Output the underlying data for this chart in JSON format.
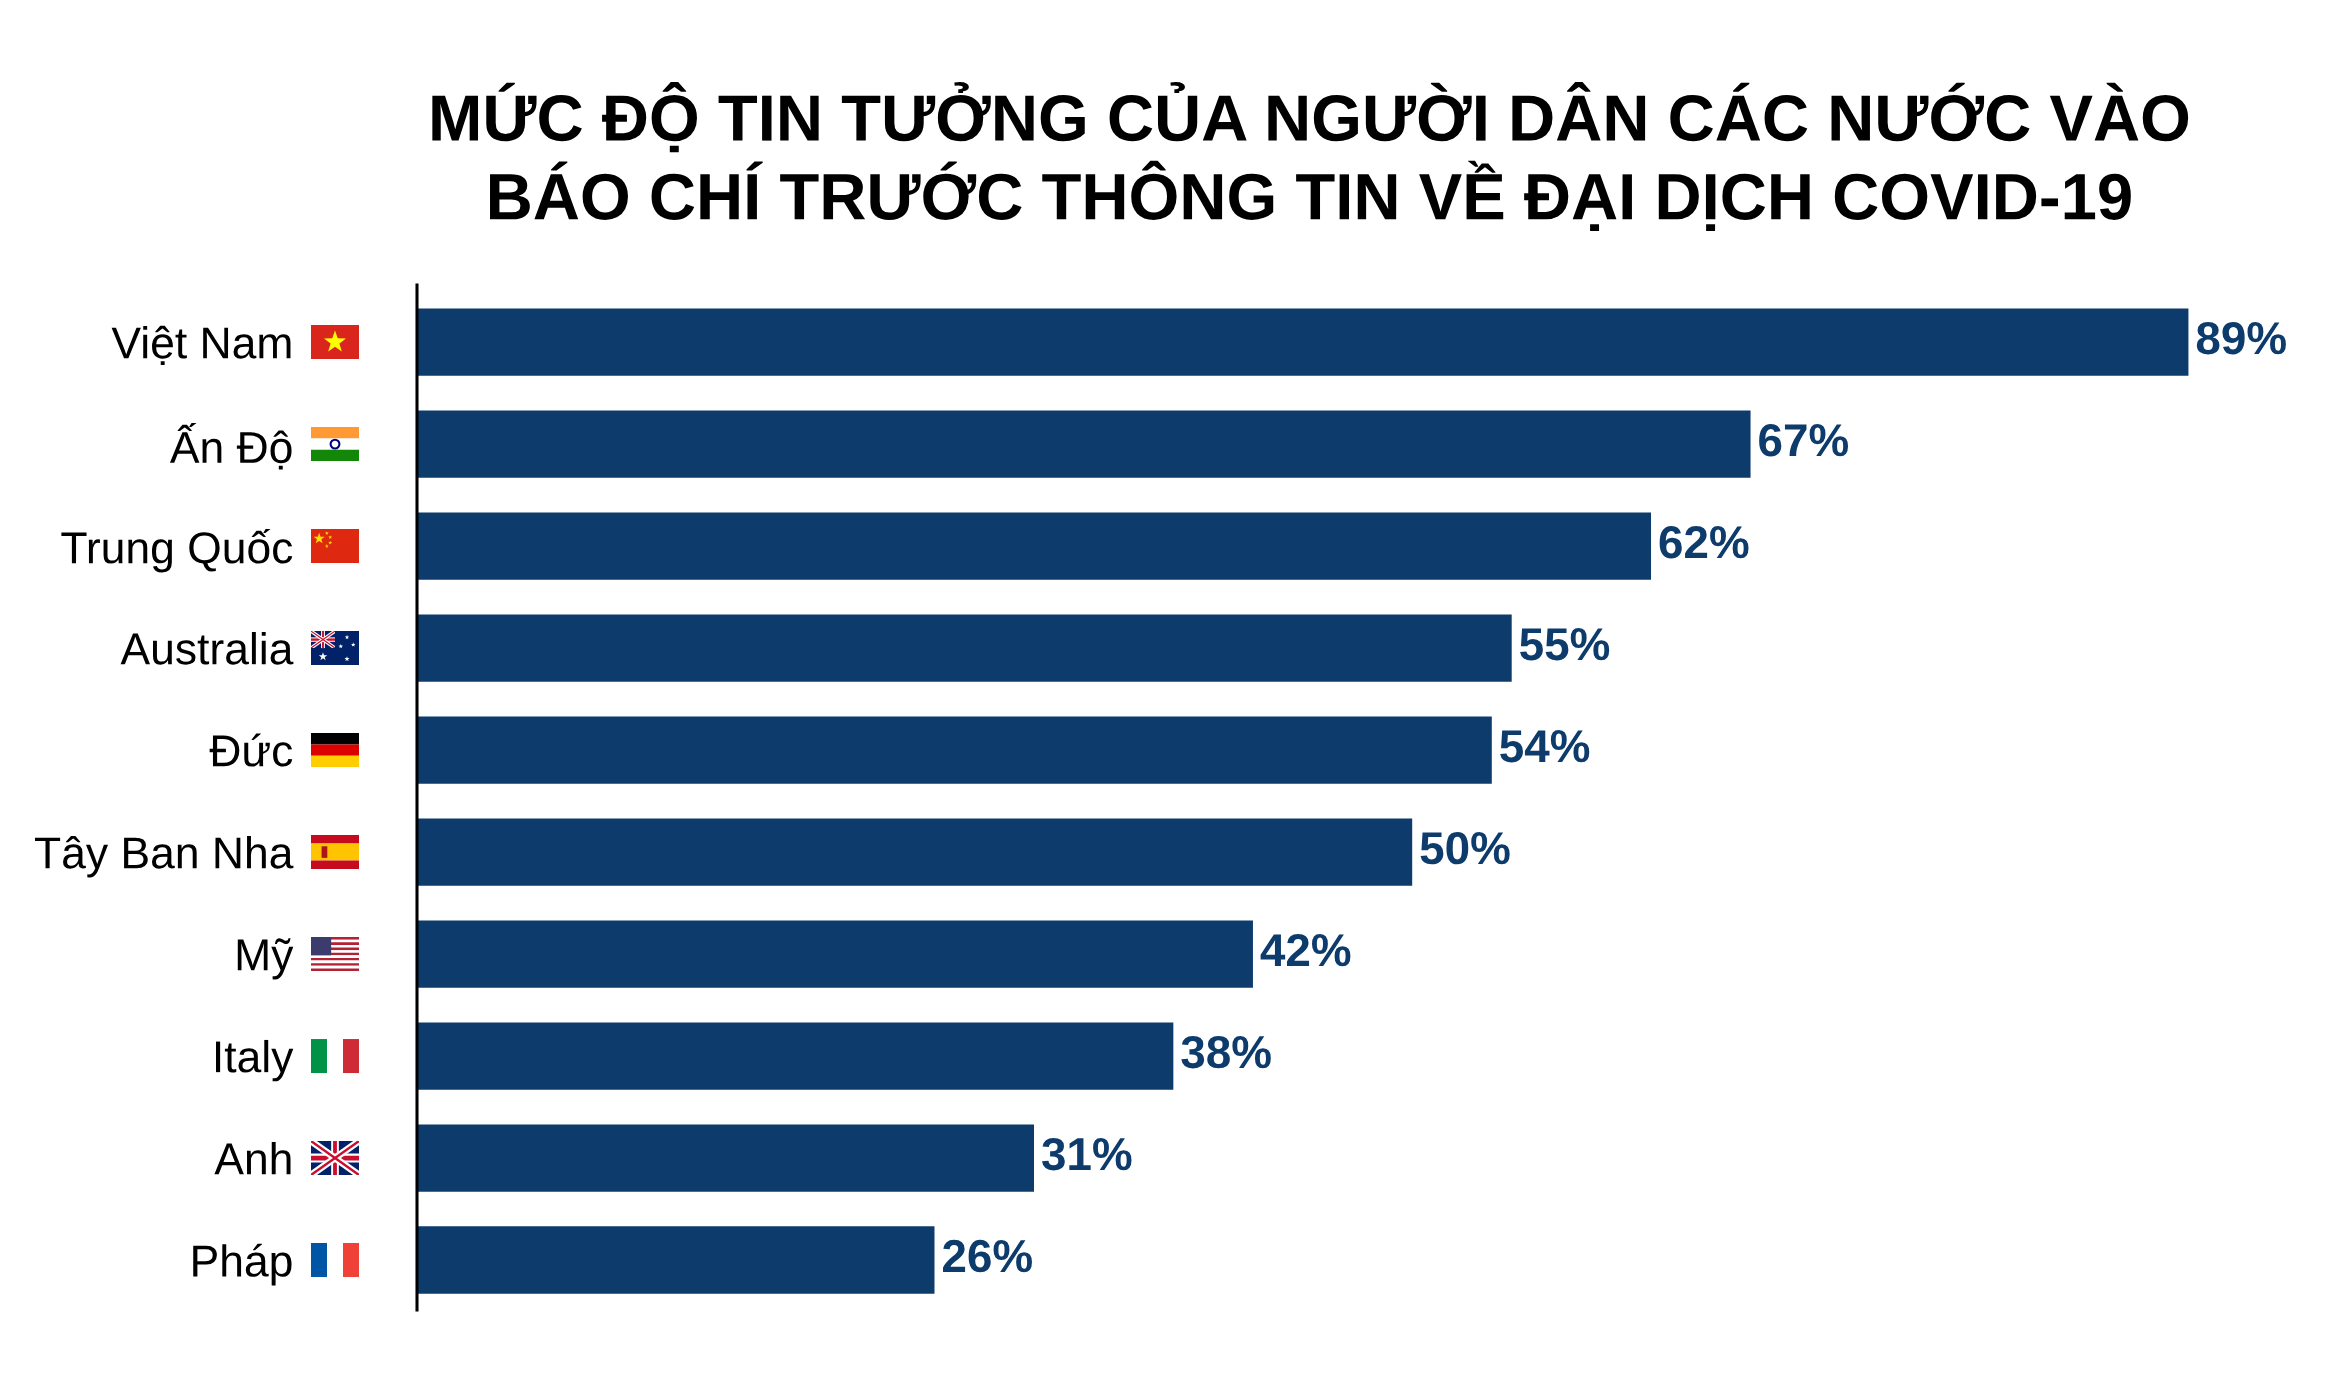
{
  "chart_data": {
    "type": "bar",
    "orientation": "horizontal",
    "title": "MỨC ĐỘ TIN TƯỞNG CỦA NGƯỜI DÂN CÁC NƯỚC VÀO BÁO CHÍ TRƯỚC THÔNG TIN VỀ ĐẠI DỊCH COVID-19",
    "categories": [
      "Việt Nam",
      "Ấn Độ",
      "Trung Quốc",
      "Australia",
      "Đức",
      "Tây Ban Nha",
      "Mỹ",
      "Italy",
      "Anh",
      "Pháp"
    ],
    "values": [
      89,
      67,
      62,
      55,
      54,
      50,
      42,
      38,
      31,
      26
    ],
    "value_labels": [
      "89%",
      "67%",
      "62%",
      "55%",
      "54%",
      "50%",
      "42%",
      "38%",
      "31%",
      "26%"
    ],
    "color": "#0d3b6c",
    "tick_labels": "y",
    "grid": false
  }
}
